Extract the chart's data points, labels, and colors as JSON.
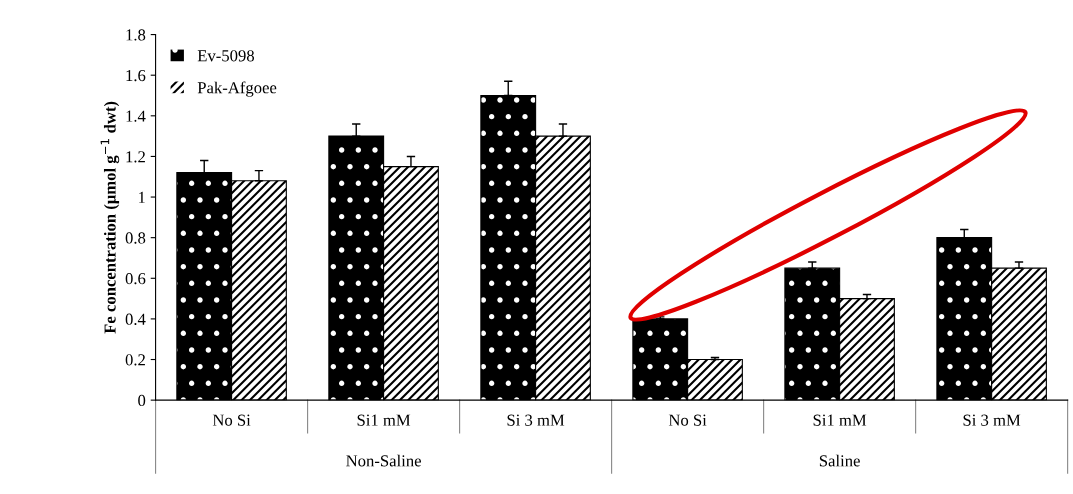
{
  "chart_data": {
    "type": "bar",
    "ylabel": "Fe concentration (μmol g$^{−1}$ dwt)",
    "categories": [
      "No Si",
      "Si1 mM",
      "Si 3 mM",
      "No Si",
      "Si1 mM",
      "Si 3 mM"
    ],
    "series": [
      {
        "name": "Ev-5098",
        "color": "#000000",
        "values": [
          1.12,
          1.3,
          1.5,
          0.4,
          0.65,
          0.8
        ],
        "errors": [
          0.06,
          0.06,
          0.07,
          0.01,
          0.03,
          0.04
        ]
      },
      {
        "name": "Pak-Afgoee",
        "color": "#ffffff",
        "values": [
          1.08,
          1.15,
          1.3,
          0.2,
          0.5,
          0.65
        ],
        "errors": [
          0.05,
          0.05,
          0.06,
          0.01,
          0.02,
          0.03
        ]
      }
    ],
    "annotations": [
      "Non-Saline",
      "Saline"
    ],
    "ylim": [
      0,
      1.8
    ],
    "yticks": [
      0,
      0.2,
      0.4,
      0.6,
      0.8,
      1,
      1.2,
      1.4,
      1.6,
      1.8
    ],
    "grid": false,
    "legend": "top left"
  }
}
